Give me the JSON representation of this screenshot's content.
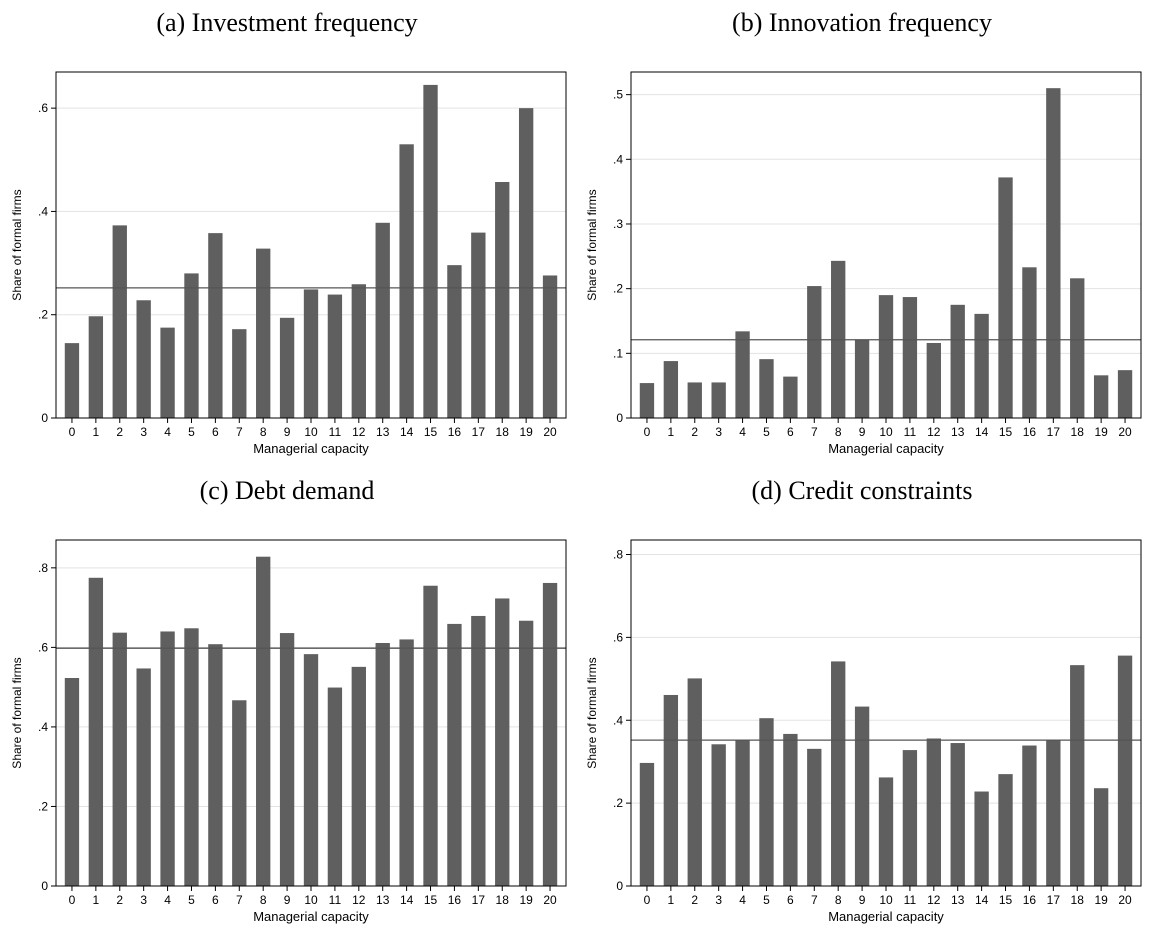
{
  "colors": {
    "bar": "#5f5f5f",
    "reference_line": "#555555",
    "grid": "#e3e3e3",
    "axis": "#000000"
  },
  "chart_data": [
    {
      "type": "bar",
      "title": "(a) Investment frequency",
      "xlabel": "Managerial capacity",
      "ylabel": "Share of formal firms",
      "categories": [
        "0",
        "1",
        "2",
        "3",
        "4",
        "5",
        "6",
        "7",
        "8",
        "9",
        "10",
        "11",
        "12",
        "13",
        "14",
        "15",
        "16",
        "17",
        "18",
        "19",
        "20"
      ],
      "values": [
        0.145,
        0.197,
        0.373,
        0.228,
        0.175,
        0.28,
        0.358,
        0.172,
        0.328,
        0.194,
        0.249,
        0.239,
        0.259,
        0.378,
        0.53,
        0.645,
        0.296,
        0.359,
        0.457,
        0.6,
        0.276
      ],
      "reference_line": 0.252,
      "ylim": [
        0,
        0.67
      ],
      "yticks": [
        0,
        0.2,
        0.4,
        0.6
      ],
      "yticklabels": [
        "0",
        ".2",
        ".4",
        ".6"
      ],
      "grid": true,
      "legend": "none"
    },
    {
      "type": "bar",
      "title": "(b) Innovation frequency",
      "xlabel": "Managerial capacity",
      "ylabel": "Share of formal firms",
      "categories": [
        "0",
        "1",
        "2",
        "3",
        "4",
        "5",
        "6",
        "7",
        "8",
        "9",
        "10",
        "11",
        "12",
        "13",
        "14",
        "15",
        "16",
        "17",
        "18",
        "19",
        "20"
      ],
      "values": [
        0.054,
        0.088,
        0.055,
        0.055,
        0.134,
        0.091,
        0.064,
        0.204,
        0.243,
        0.121,
        0.19,
        0.187,
        0.116,
        0.175,
        0.161,
        0.372,
        0.233,
        0.51,
        0.216,
        0.066,
        0.074
      ],
      "reference_line": 0.121,
      "ylim": [
        0,
        0.535
      ],
      "yticks": [
        0,
        0.1,
        0.2,
        0.3,
        0.4,
        0.5
      ],
      "yticklabels": [
        "0",
        ".1",
        ".2",
        ".3",
        ".4",
        ".5"
      ],
      "grid": true,
      "legend": "none"
    },
    {
      "type": "bar",
      "title": "(c) Debt demand",
      "xlabel": "Managerial capacity",
      "ylabel": "Share of formal firms",
      "categories": [
        "0",
        "1",
        "2",
        "3",
        "4",
        "5",
        "6",
        "7",
        "8",
        "9",
        "10",
        "11",
        "12",
        "13",
        "14",
        "15",
        "16",
        "17",
        "18",
        "19",
        "20"
      ],
      "values": [
        0.523,
        0.775,
        0.637,
        0.547,
        0.64,
        0.648,
        0.608,
        0.467,
        0.828,
        0.636,
        0.583,
        0.499,
        0.551,
        0.611,
        0.62,
        0.755,
        0.659,
        0.679,
        0.723,
        0.667,
        0.762
      ],
      "reference_line": 0.598,
      "ylim": [
        0,
        0.87
      ],
      "yticks": [
        0,
        0.2,
        0.4,
        0.6,
        0.8
      ],
      "yticklabels": [
        "0",
        ".2",
        ".4",
        ".6",
        ".8"
      ],
      "grid": true,
      "legend": "none"
    },
    {
      "type": "bar",
      "title": "(d) Credit constraints",
      "xlabel": "Managerial capacity",
      "ylabel": "Share of formal firms",
      "categories": [
        "0",
        "1",
        "2",
        "3",
        "4",
        "5",
        "6",
        "7",
        "8",
        "9",
        "10",
        "11",
        "12",
        "13",
        "14",
        "15",
        "16",
        "17",
        "18",
        "19",
        "20"
      ],
      "values": [
        0.297,
        0.461,
        0.501,
        0.342,
        0.353,
        0.405,
        0.367,
        0.331,
        0.542,
        0.433,
        0.262,
        0.328,
        0.356,
        0.345,
        0.228,
        0.27,
        0.339,
        0.352,
        0.533,
        0.236,
        0.556
      ],
      "reference_line": 0.352,
      "ylim": [
        0,
        0.835
      ],
      "yticks": [
        0,
        0.2,
        0.4,
        0.6,
        0.8
      ],
      "yticklabels": [
        "0",
        ".2",
        ".4",
        ".6",
        ".8"
      ],
      "grid": true,
      "legend": "none"
    }
  ]
}
